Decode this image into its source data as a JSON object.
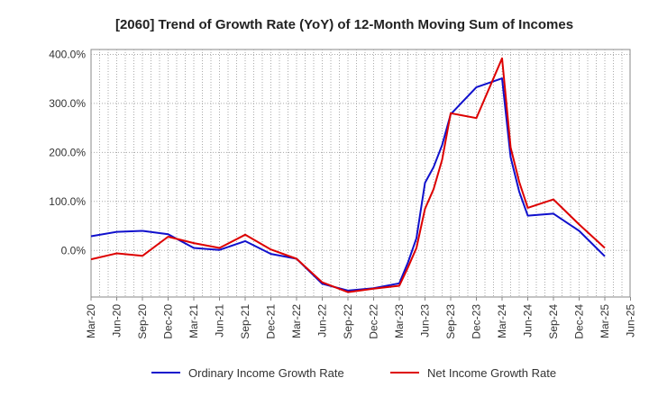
{
  "chart_data": {
    "type": "line",
    "title": "[2060]  Trend of Growth Rate (YoY) of 12-Month Moving Sum of Incomes",
    "xlabel": "",
    "ylabel": "",
    "ylim": [
      -95,
      410
    ],
    "yticks": [
      0,
      100,
      200,
      300,
      400
    ],
    "ytick_labels": [
      "0.0%",
      "100.0%",
      "200.0%",
      "300.0%",
      "400.0%"
    ],
    "x_tick_labels": [
      "Mar-20",
      "Jun-20",
      "Sep-20",
      "Dec-20",
      "Mar-21",
      "Jun-21",
      "Sep-21",
      "Dec-21",
      "Mar-22",
      "Jun-22",
      "Sep-22",
      "Dec-22",
      "Mar-23",
      "Jun-23",
      "Sep-23",
      "Dec-23",
      "Mar-24",
      "Jun-24",
      "Sep-24",
      "Dec-24",
      "Mar-25",
      "Jun-25"
    ],
    "grid": true,
    "legend_position": "bottom",
    "x": [
      "Mar-20",
      "Apr-20",
      "May-20",
      "Jun-20",
      "Jul-20",
      "Aug-20",
      "Sep-20",
      "Oct-20",
      "Nov-20",
      "Dec-20",
      "Jan-21",
      "Feb-21",
      "Mar-21",
      "Apr-21",
      "May-21",
      "Jun-21",
      "Jul-21",
      "Aug-21",
      "Sep-21",
      "Oct-21",
      "Nov-21",
      "Dec-21",
      "Jan-22",
      "Feb-22",
      "Mar-22",
      "Apr-22",
      "May-22",
      "Jun-22",
      "Jul-22",
      "Aug-22",
      "Sep-22",
      "Oct-22",
      "Nov-22",
      "Dec-22",
      "Jan-23",
      "Feb-23",
      "Mar-23",
      "Apr-23",
      "May-23",
      "Jun-23",
      "Jul-23",
      "Aug-23",
      "Sep-23",
      "Oct-23",
      "Nov-23",
      "Dec-23",
      "Jan-24",
      "Feb-24",
      "Mar-24",
      "Apr-24",
      "May-24",
      "Jun-24",
      "Jul-24",
      "Aug-24",
      "Sep-24",
      "Oct-24",
      "Nov-24",
      "Dec-24",
      "Jan-25",
      "Feb-25",
      "Mar-25"
    ],
    "series": [
      {
        "name": "Ordinary Income Growth Rate",
        "color": "#1010cc",
        "values": [
          29,
          null,
          null,
          38,
          null,
          null,
          40,
          null,
          null,
          33,
          null,
          null,
          5,
          null,
          null,
          1,
          null,
          null,
          19,
          null,
          null,
          -7,
          null,
          null,
          -17,
          null,
          null,
          -68,
          null,
          null,
          -82,
          null,
          null,
          -77,
          null,
          null,
          -67,
          -25,
          25,
          138,
          170,
          215,
          278,
          null,
          null,
          333,
          null,
          null,
          351,
          190,
          120,
          71,
          null,
          null,
          75,
          null,
          null,
          40,
          null,
          null,
          -12
        ]
      },
      {
        "name": "Net Income Growth Rate",
        "color": "#dd0000",
        "values": [
          -18,
          null,
          null,
          -6,
          null,
          null,
          -11,
          null,
          null,
          28,
          null,
          null,
          15,
          null,
          null,
          5,
          null,
          null,
          32,
          null,
          null,
          2,
          null,
          null,
          -17,
          null,
          null,
          -65,
          null,
          null,
          -85,
          null,
          null,
          -78,
          null,
          null,
          -72,
          -35,
          5,
          85,
          125,
          185,
          280,
          null,
          null,
          270,
          null,
          null,
          392,
          210,
          140,
          87,
          null,
          null,
          104,
          null,
          null,
          53,
          null,
          null,
          5
        ]
      }
    ]
  }
}
